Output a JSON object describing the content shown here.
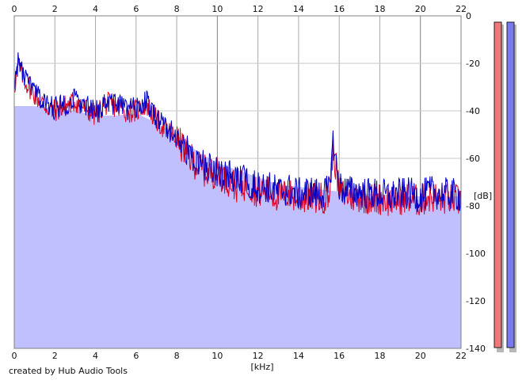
{
  "footer": {
    "credit": "created by Hub Audio Tools"
  },
  "chart_data": {
    "type": "area",
    "xlabel": "[kHz]",
    "ylabel": "[dB]",
    "xlim": [
      0,
      22
    ],
    "ylim": [
      -140,
      0
    ],
    "x_ticks": [
      0,
      2,
      4,
      6,
      8,
      10,
      12,
      14,
      16,
      18,
      20,
      22
    ],
    "x_tick_labels": [
      "0",
      "2",
      "4",
      "6",
      "8",
      "10",
      "12",
      "14",
      "16",
      "18",
      "20",
      "22"
    ],
    "y_ticks": [
      0,
      -20,
      -40,
      -60,
      -80,
      -100,
      -120,
      -140
    ],
    "y_tick_labels": [
      "0",
      "-20",
      "-40",
      "-60",
      "-80",
      "-100",
      "-120",
      "-140"
    ],
    "grid": true,
    "fill_floor_curve": {
      "x": [
        0,
        0.5,
        1,
        2,
        3,
        4,
        5,
        6,
        7,
        8,
        9,
        10,
        11,
        12,
        13,
        14,
        15,
        16,
        17,
        18,
        19,
        20,
        21,
        22
      ],
      "y": [
        -38,
        -38,
        -38,
        -39,
        -40,
        -42,
        -42,
        -41,
        -45,
        -50,
        -57,
        -62,
        -65,
        -68,
        -71,
        -72,
        -73,
        -74,
        -75,
        -75,
        -76,
        -76,
        -76,
        -76
      ]
    },
    "series": [
      {
        "color": "#e00020",
        "x": [
          0,
          0.2,
          0.5,
          1,
          1.5,
          2,
          2.5,
          3,
          3.5,
          4,
          4.5,
          5,
          5.5,
          6,
          6.5,
          7,
          7.5,
          8,
          8.5,
          9,
          9.5,
          10,
          10.5,
          11,
          11.5,
          12,
          12.5,
          13,
          13.5,
          14,
          14.5,
          15,
          15.5,
          15.7,
          16,
          16.5,
          17,
          17.5,
          18,
          18.5,
          19,
          19.5,
          20,
          20.5,
          21,
          21.5,
          22
        ],
        "y": [
          -30,
          -21,
          -27,
          -33,
          -38,
          -40,
          -38,
          -36,
          -39,
          -42,
          -37,
          -38,
          -40,
          -40,
          -37,
          -44,
          -48,
          -52,
          -58,
          -63,
          -66,
          -66,
          -69,
          -72,
          -71,
          -74,
          -74,
          -76,
          -75,
          -77,
          -76,
          -77,
          -76,
          -55,
          -74,
          -76,
          -76,
          -77,
          -77,
          -78,
          -77,
          -77,
          -78,
          -76,
          -77,
          -77,
          -78
        ]
      },
      {
        "color": "#0000c8",
        "x": [
          0,
          0.2,
          0.5,
          1,
          1.5,
          2,
          2.5,
          3,
          3.5,
          4,
          4.5,
          5,
          5.5,
          6,
          6.5,
          7,
          7.5,
          8,
          8.5,
          9,
          9.5,
          10,
          10.5,
          11,
          11.5,
          12,
          12.5,
          13,
          13.5,
          14,
          14.5,
          15,
          15.5,
          15.7,
          16,
          16.5,
          17,
          17.5,
          18,
          18.5,
          19,
          19.5,
          20,
          20.5,
          21,
          21.5,
          22
        ],
        "y": [
          -29,
          -19,
          -26,
          -32,
          -37,
          -39,
          -37,
          -35,
          -38,
          -41,
          -36,
          -37,
          -39,
          -39,
          -36,
          -43,
          -47,
          -51,
          -57,
          -62,
          -64,
          -65,
          -67,
          -70,
          -69,
          -72,
          -72,
          -74,
          -73,
          -75,
          -74,
          -75,
          -74,
          -53,
          -72,
          -74,
          -74,
          -75,
          -75,
          -76,
          -75,
          -75,
          -76,
          -74,
          -75,
          -75,
          -76
        ]
      }
    ],
    "level_meters": [
      {
        "color": "#f07878"
      },
      {
        "color": "#7878f0"
      }
    ]
  }
}
